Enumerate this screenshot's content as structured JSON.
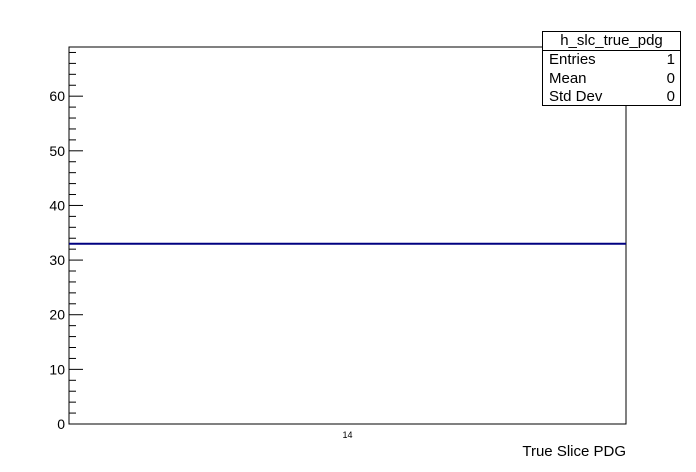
{
  "chart_data": {
    "type": "bar",
    "title": "",
    "xlabel": "True Slice PDG",
    "ylabel": "",
    "categories": [
      "14"
    ],
    "values": [
      33
    ],
    "ylim": [
      0,
      69
    ],
    "yticks": [
      0,
      10,
      20,
      30,
      40,
      50,
      60
    ],
    "line_color": "#000080"
  },
  "stats": {
    "name": "h_slc_true_pdg",
    "rows": [
      {
        "label": "Entries",
        "value": "1"
      },
      {
        "label": "Mean",
        "value": "0"
      },
      {
        "label": "Std Dev",
        "value": "0"
      }
    ]
  }
}
